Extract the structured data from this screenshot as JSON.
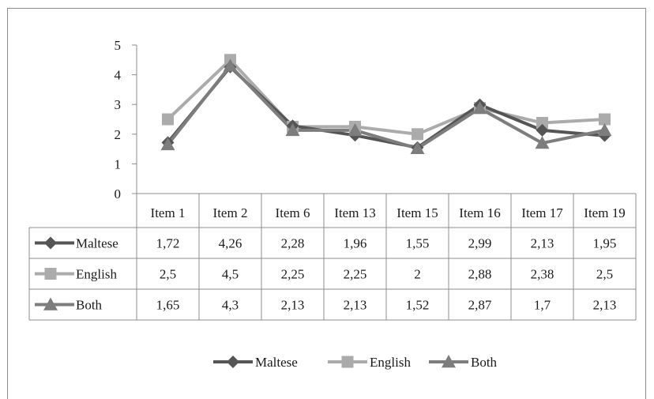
{
  "chart_data": {
    "type": "line",
    "title": "",
    "xlabel": "",
    "ylabel": "",
    "ylim": [
      0,
      5
    ],
    "yticks": [
      "0",
      "1",
      "2",
      "3",
      "4",
      "5"
    ],
    "grid": false,
    "legend": "bottom",
    "data_table": true,
    "categories": [
      "Item 1",
      "Item 2",
      "Item 6",
      "Item 13",
      "Item 15",
      "Item 16",
      "Item 17",
      "Item 19"
    ],
    "series": [
      {
        "name": "Maltese",
        "marker": "diamond",
        "color": "#555555",
        "values": [
          1.72,
          4.26,
          2.28,
          1.96,
          1.55,
          2.99,
          2.13,
          1.95
        ],
        "labels": [
          "1,72",
          "4,26",
          "2,28",
          "1,96",
          "1,55",
          "2,99",
          "2,13",
          "1,95"
        ]
      },
      {
        "name": "English",
        "marker": "square",
        "color": "#ababab",
        "values": [
          2.5,
          4.5,
          2.25,
          2.25,
          2.0,
          2.88,
          2.38,
          2.5
        ],
        "labels": [
          "2,5",
          "4,5",
          "2,25",
          "2,25",
          "2",
          "2,88",
          "2,38",
          "2,5"
        ]
      },
      {
        "name": "Both",
        "marker": "triangle",
        "color": "#7d7d7d",
        "values": [
          1.65,
          4.3,
          2.13,
          2.13,
          1.52,
          2.87,
          1.7,
          2.13
        ],
        "labels": [
          "1,65",
          "4,3",
          "2,13",
          "2,13",
          "1,52",
          "2,87",
          "1,7",
          "2,13"
        ]
      }
    ]
  }
}
